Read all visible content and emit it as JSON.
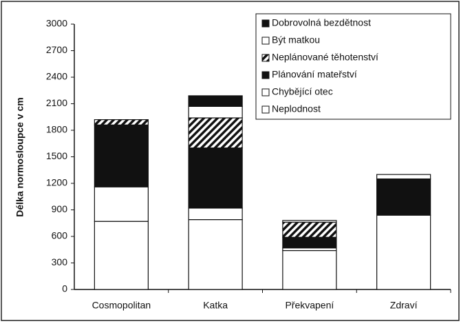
{
  "chart_data": {
    "type": "stacked_bar",
    "ylabel": "Délka normosloupce v cm",
    "categories": [
      "Cosmopolitan",
      "Katka",
      "Překvapení",
      "Zdraví"
    ],
    "series": [
      {
        "name": "Neplodnost",
        "color": "#ffffff",
        "values": [
          770,
          790,
          440,
          840
        ]
      },
      {
        "name": "Chybějící otec",
        "color": "#ffffff",
        "values": [
          390,
          130,
          30,
          0
        ]
      },
      {
        "name": "Plánování mateřství",
        "color": "#111111",
        "values": [
          700,
          680,
          120,
          410
        ]
      },
      {
        "name": "Neplánované těhotenství",
        "color": "#111111",
        "pattern": "diagonal",
        "values": [
          60,
          340,
          170,
          0
        ]
      },
      {
        "name": "Být matkou",
        "color": "#ffffff",
        "values": [
          0,
          130,
          20,
          50
        ]
      },
      {
        "name": "Dobrovolná bezdětnost",
        "color": "#111111",
        "values": [
          0,
          120,
          0,
          0
        ]
      }
    ],
    "ylim": [
      0,
      3000
    ],
    "yticks": [
      0,
      300,
      600,
      900,
      1200,
      1500,
      1800,
      2100,
      2400,
      2700,
      3000
    ],
    "grid": false,
    "legend": "top-right",
    "legend_order": "reversed"
  }
}
